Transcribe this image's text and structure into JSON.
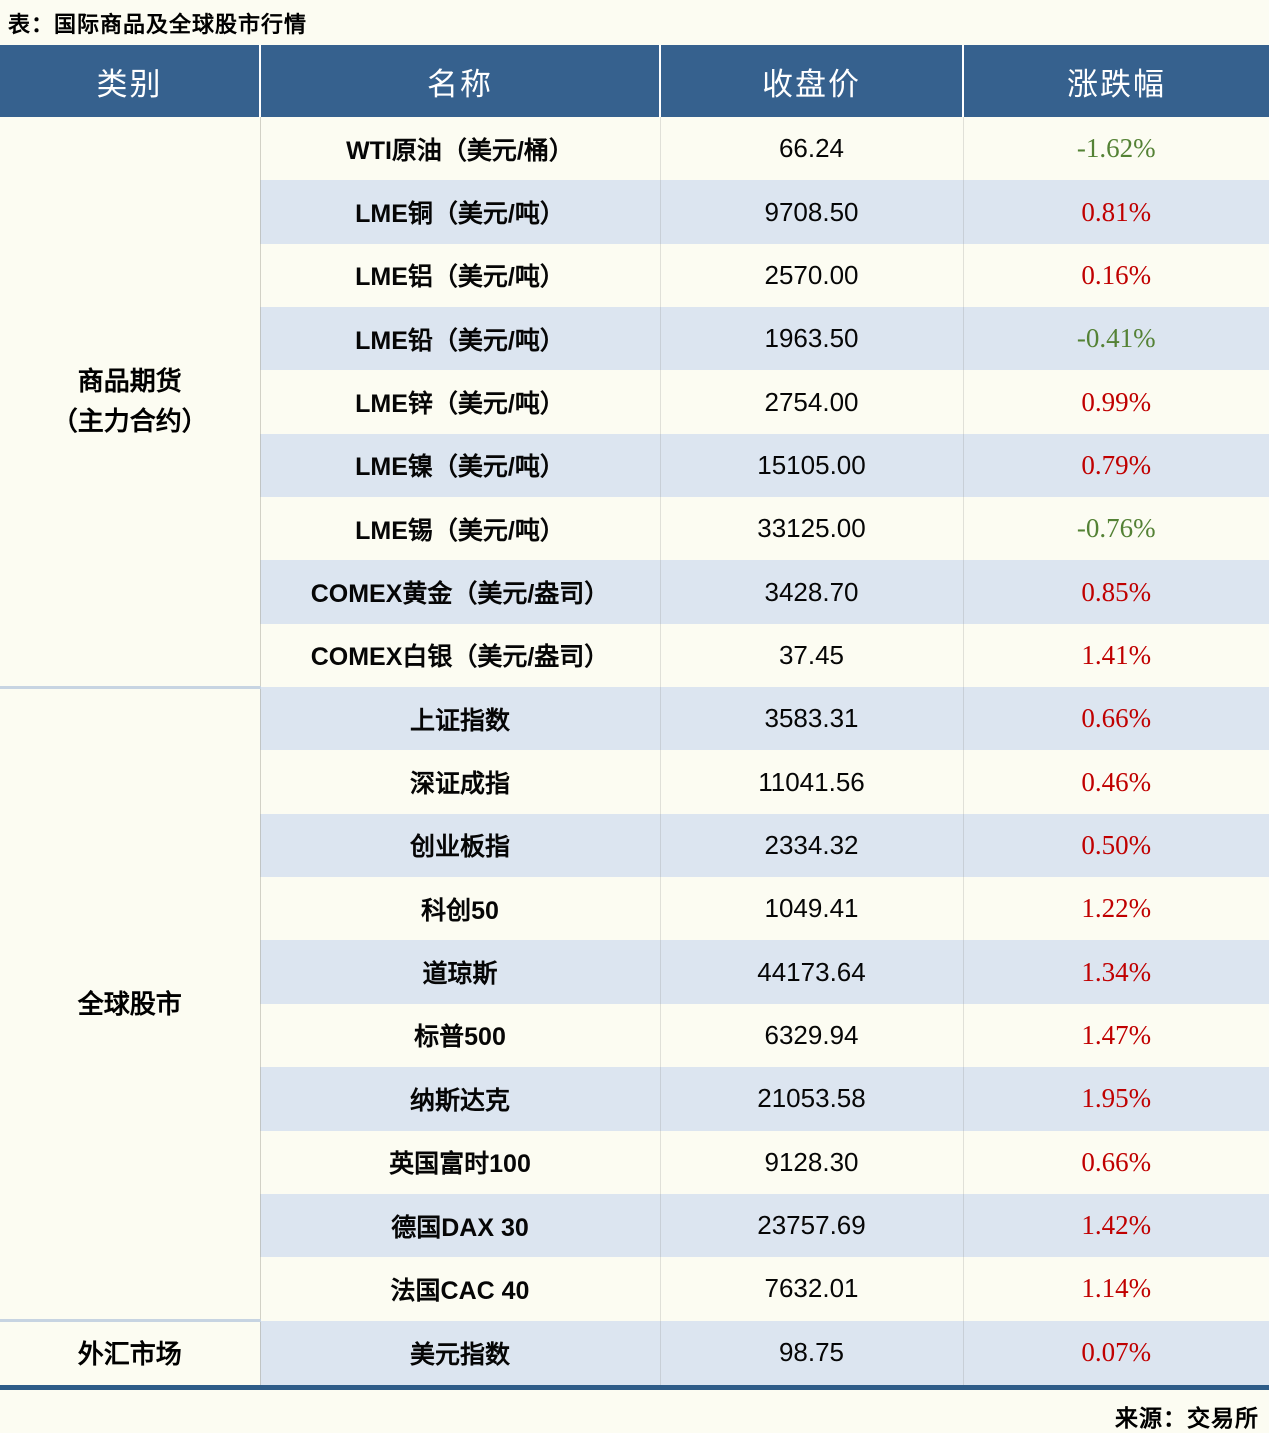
{
  "title": "表：国际商品及全球股市行情",
  "source": "来源：交易所",
  "colors": {
    "page_bg": "#FCFCF2",
    "header_bg": "#36618E",
    "stripe": "#DCE5F0",
    "up": "#C00000",
    "down": "#548235",
    "bottom_line": "#2E5C88",
    "cat_sep": "#C7D4E2"
  },
  "chart_data": {
    "type": "table",
    "title": "表：国际商品及全球股市行情",
    "source": "来源：交易所",
    "columns": [
      "类别",
      "名称",
      "收盘价",
      "涨跌幅"
    ],
    "groups": [
      {
        "category_lines": [
          "商品期货",
          "（主力合约）"
        ],
        "rows": [
          {
            "name": "WTI原油（美元/桶）",
            "close": "66.24",
            "change": "-1.62%",
            "direction": "down"
          },
          {
            "name": "LME铜（美元/吨）",
            "close": "9708.50",
            "change": "0.81%",
            "direction": "up"
          },
          {
            "name": "LME铝（美元/吨）",
            "close": "2570.00",
            "change": "0.16%",
            "direction": "up"
          },
          {
            "name": "LME铅（美元/吨）",
            "close": "1963.50",
            "change": "-0.41%",
            "direction": "down"
          },
          {
            "name": "LME锌（美元/吨）",
            "close": "2754.00",
            "change": "0.99%",
            "direction": "up"
          },
          {
            "name": "LME镍（美元/吨）",
            "close": "15105.00",
            "change": "0.79%",
            "direction": "up"
          },
          {
            "name": "LME锡（美元/吨）",
            "close": "33125.00",
            "change": "-0.76%",
            "direction": "down"
          },
          {
            "name": "COMEX黄金（美元/盎司）",
            "close": "3428.70",
            "change": "0.85%",
            "direction": "up"
          },
          {
            "name": "COMEX白银（美元/盎司）",
            "close": "37.45",
            "change": "1.41%",
            "direction": "up"
          }
        ]
      },
      {
        "category_lines": [
          "全球股市"
        ],
        "rows": [
          {
            "name": "上证指数",
            "close": "3583.31",
            "change": "0.66%",
            "direction": "up"
          },
          {
            "name": "深证成指",
            "close": "11041.56",
            "change": "0.46%",
            "direction": "up"
          },
          {
            "name": "创业板指",
            "close": "2334.32",
            "change": "0.50%",
            "direction": "up"
          },
          {
            "name": "科创50",
            "close": "1049.41",
            "change": "1.22%",
            "direction": "up"
          },
          {
            "name": "道琼斯",
            "close": "44173.64",
            "change": "1.34%",
            "direction": "up"
          },
          {
            "name": "标普500",
            "close": "6329.94",
            "change": "1.47%",
            "direction": "up"
          },
          {
            "name": "纳斯达克",
            "close": "21053.58",
            "change": "1.95%",
            "direction": "up"
          },
          {
            "name": "英国富时100",
            "close": "9128.30",
            "change": "0.66%",
            "direction": "up"
          },
          {
            "name": "德国DAX 30",
            "close": "23757.69",
            "change": "1.42%",
            "direction": "up"
          },
          {
            "name": "法国CAC 40",
            "close": "7632.01",
            "change": "1.14%",
            "direction": "up"
          }
        ]
      },
      {
        "category_lines": [
          "外汇市场"
        ],
        "rows": [
          {
            "name": "美元指数",
            "close": "98.75",
            "change": "0.07%",
            "direction": "up"
          }
        ]
      }
    ]
  }
}
